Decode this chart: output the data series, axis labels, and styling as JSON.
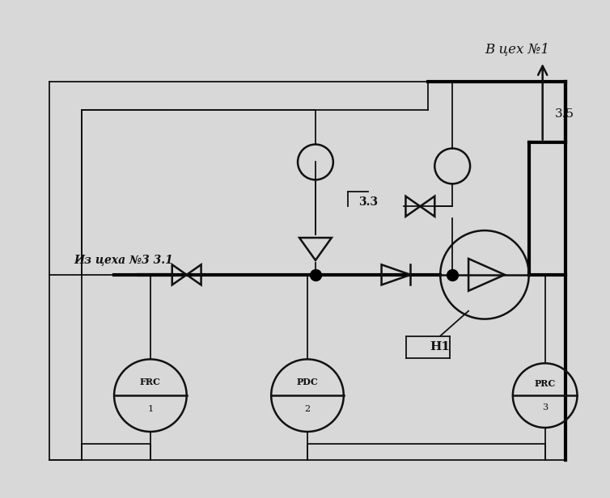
{
  "background_color": "#d8d8d8",
  "line_color": "#111111",
  "thick_line_color": "#000000",
  "title_text": "В цех №1",
  "label_from": "Из цеха №3",
  "label_31": "3.1",
  "label_33": "3.3",
  "label_35": "3.5",
  "label_n1": "Н1",
  "instr_frc": "FRC",
  "instr_frc_num": "1",
  "instr_pdc": "PDC",
  "instr_pdc_num": "2",
  "instr_prc": "PRC",
  "instr_prc_num": "3"
}
